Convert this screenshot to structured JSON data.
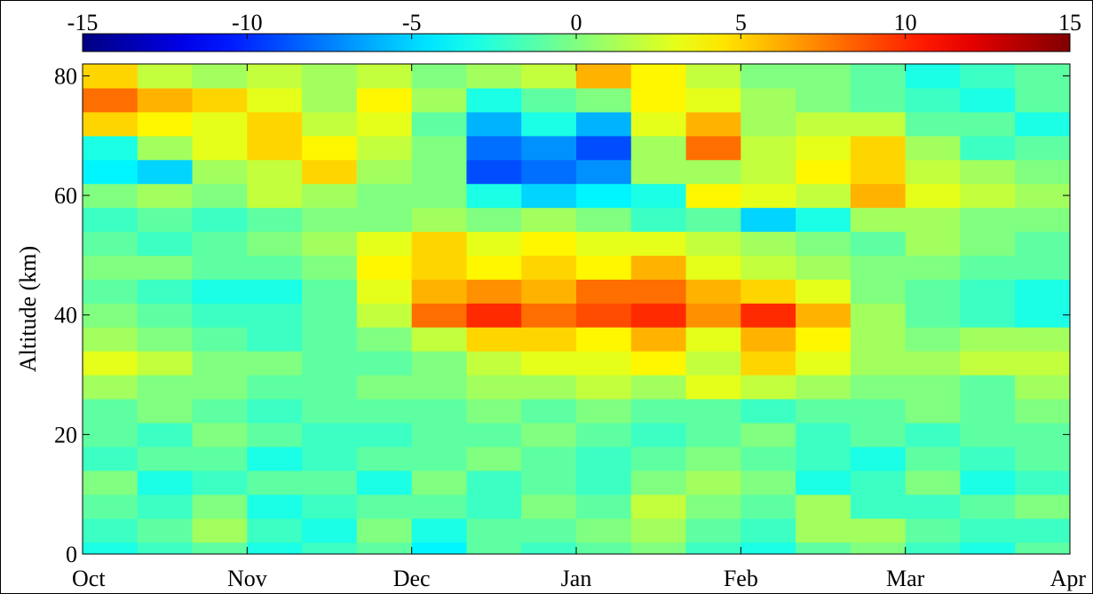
{
  "chart_data": {
    "type": "heatmap",
    "title": "",
    "xlabel": "",
    "ylabel": "Altitude (km)",
    "x_ticks": [
      "Oct",
      "Nov",
      "Dec",
      "Jan",
      "Feb",
      "Mar",
      "Apr"
    ],
    "y_ticks": [
      0,
      20,
      40,
      60,
      80
    ],
    "ylim": [
      0,
      82
    ],
    "colorbar": {
      "ticks": [
        -15,
        -10,
        -5,
        0,
        5,
        10,
        15
      ],
      "range": [
        -15,
        15
      ],
      "colormap": "jet",
      "placement": "top"
    },
    "altitudes_km": [
      0,
      4,
      8,
      12,
      16,
      20,
      24,
      28,
      32,
      36,
      40,
      44,
      48,
      52,
      56,
      60,
      64,
      68,
      72,
      76,
      80
    ],
    "column_months": [
      "Oct",
      "Oct",
      "Oct",
      "Nov",
      "Nov",
      "Nov",
      "Dec",
      "Dec",
      "Dec",
      "Jan",
      "Jan",
      "Jan",
      "Feb",
      "Feb",
      "Feb",
      "Mar",
      "Mar",
      "Mar"
    ],
    "values": [
      [
        -3,
        -2,
        -1,
        -3,
        -2,
        -1,
        -4,
        -1,
        -2,
        -1,
        0,
        -2,
        -3,
        -1,
        0,
        -2,
        -3,
        -1
      ],
      [
        -2,
        -1,
        1,
        -2,
        -3,
        0,
        -3,
        -1,
        -1,
        0,
        1,
        -1,
        -2,
        1,
        1,
        -1,
        -2,
        -2
      ],
      [
        -1,
        -2,
        0,
        -3,
        -2,
        -1,
        -1,
        -2,
        0,
        -1,
        2,
        0,
        -1,
        1,
        -2,
        -2,
        -1,
        0
      ],
      [
        0,
        -3,
        -2,
        -1,
        -1,
        -3,
        0,
        -2,
        -1,
        -2,
        0,
        1,
        0,
        -3,
        -2,
        0,
        -3,
        -2
      ],
      [
        -2,
        -1,
        -1,
        -3,
        -2,
        -1,
        -1,
        0,
        -1,
        -2,
        -1,
        0,
        -1,
        -2,
        -3,
        -1,
        -2,
        -1
      ],
      [
        -1,
        -2,
        0,
        -1,
        -2,
        -2,
        -1,
        -1,
        0,
        -1,
        -2,
        -1,
        0,
        -2,
        -1,
        -2,
        -1,
        -1
      ],
      [
        -1,
        0,
        -1,
        -2,
        -1,
        -1,
        -1,
        0,
        -1,
        0,
        -1,
        -1,
        -2,
        -1,
        -1,
        0,
        -1,
        0
      ],
      [
        1,
        0,
        0,
        -1,
        -1,
        0,
        0,
        1,
        1,
        2,
        1,
        3,
        2,
        1,
        0,
        0,
        -1,
        1
      ],
      [
        3,
        2,
        0,
        0,
        -1,
        -1,
        0,
        2,
        3,
        3,
        4,
        2,
        5,
        3,
        1,
        1,
        2,
        2
      ],
      [
        1,
        0,
        -1,
        -2,
        -1,
        0,
        2,
        5,
        5,
        4,
        6,
        3,
        6,
        4,
        1,
        0,
        1,
        1
      ],
      [
        0,
        -1,
        -2,
        -2,
        -1,
        2,
        8,
        10,
        8,
        9,
        10,
        7,
        10,
        6,
        1,
        -1,
        -2,
        -3
      ],
      [
        -1,
        -2,
        -3,
        -3,
        -1,
        3,
        6,
        7,
        6,
        8,
        8,
        6,
        5,
        3,
        0,
        -1,
        -2,
        -3
      ],
      [
        0,
        0,
        -1,
        -1,
        0,
        4,
        5,
        4,
        5,
        4,
        6,
        3,
        2,
        1,
        0,
        0,
        -1,
        -1
      ],
      [
        -1,
        -2,
        -1,
        0,
        1,
        3,
        5,
        3,
        4,
        3,
        3,
        2,
        1,
        0,
        -1,
        1,
        0,
        -1
      ],
      [
        -2,
        -1,
        -2,
        -1,
        0,
        0,
        1,
        0,
        1,
        0,
        -2,
        -1,
        -5,
        -3,
        1,
        1,
        0,
        0
      ],
      [
        0,
        1,
        0,
        2,
        1,
        0,
        0,
        -3,
        -5,
        -4,
        -3,
        4,
        3,
        2,
        6,
        3,
        2,
        1
      ],
      [
        -4,
        -5,
        1,
        2,
        5,
        1,
        0,
        -9,
        -8,
        -7,
        1,
        1,
        2,
        4,
        5,
        2,
        1,
        0
      ],
      [
        -3,
        1,
        3,
        5,
        4,
        2,
        0,
        -8,
        -7,
        -9,
        1,
        8,
        2,
        3,
        5,
        1,
        -2,
        -1
      ],
      [
        5,
        4,
        3,
        5,
        2,
        3,
        -1,
        -6,
        -3,
        -6,
        3,
        6,
        1,
        2,
        2,
        -1,
        -1,
        -3
      ],
      [
        8,
        6,
        5,
        3,
        1,
        4,
        1,
        -3,
        -1,
        0,
        4,
        3,
        1,
        0,
        -1,
        -2,
        -3,
        -1
      ],
      [
        5,
        2,
        1,
        2,
        1,
        2,
        0,
        1,
        2,
        6,
        4,
        2,
        0,
        0,
        -1,
        -3,
        -2,
        -1
      ]
    ]
  }
}
